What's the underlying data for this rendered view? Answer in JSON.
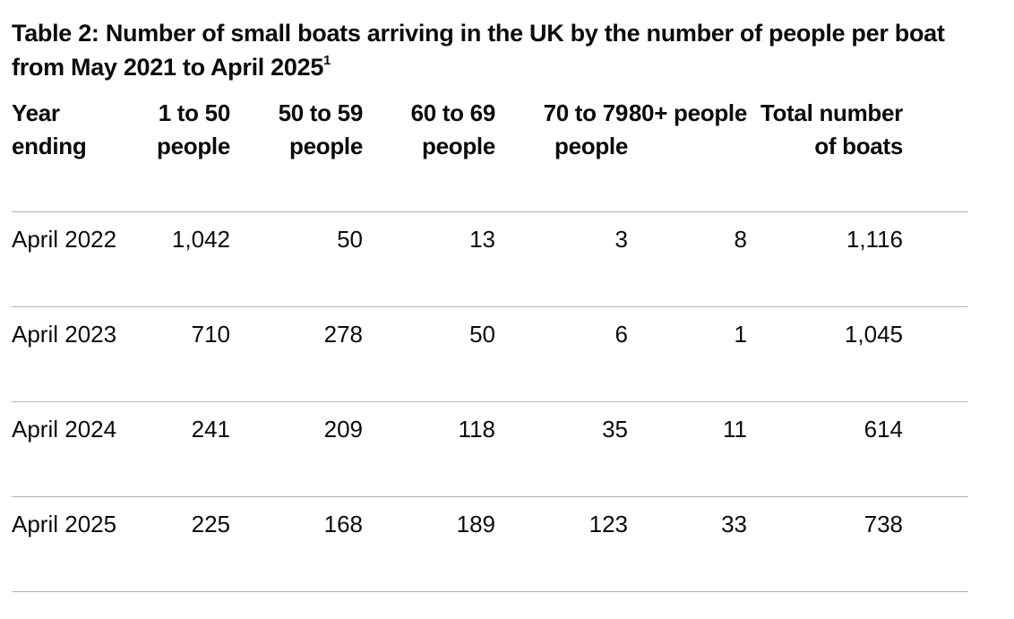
{
  "caption": {
    "text": "Table 2: Number of small boats arriving in the UK by the number of people per boat from May 2021 to April 2025",
    "footnote": "1"
  },
  "table": {
    "headers": [
      "Year ending",
      "1 to 50 people",
      "50 to 59 people",
      "60 to 69 people",
      "70 to 79 people",
      "80+ people",
      "Total number of boats"
    ],
    "rows": [
      [
        "April 2022",
        "1,042",
        "50",
        "13",
        "3",
        "8",
        "1,116"
      ],
      [
        "April 2023",
        "710",
        "278",
        "50",
        "6",
        "1",
        "1,045"
      ],
      [
        "April 2024",
        "241",
        "209",
        "118",
        "35",
        "11",
        "614"
      ],
      [
        "April 2025",
        "225",
        "168",
        "189",
        "123",
        "33",
        "738"
      ]
    ]
  }
}
